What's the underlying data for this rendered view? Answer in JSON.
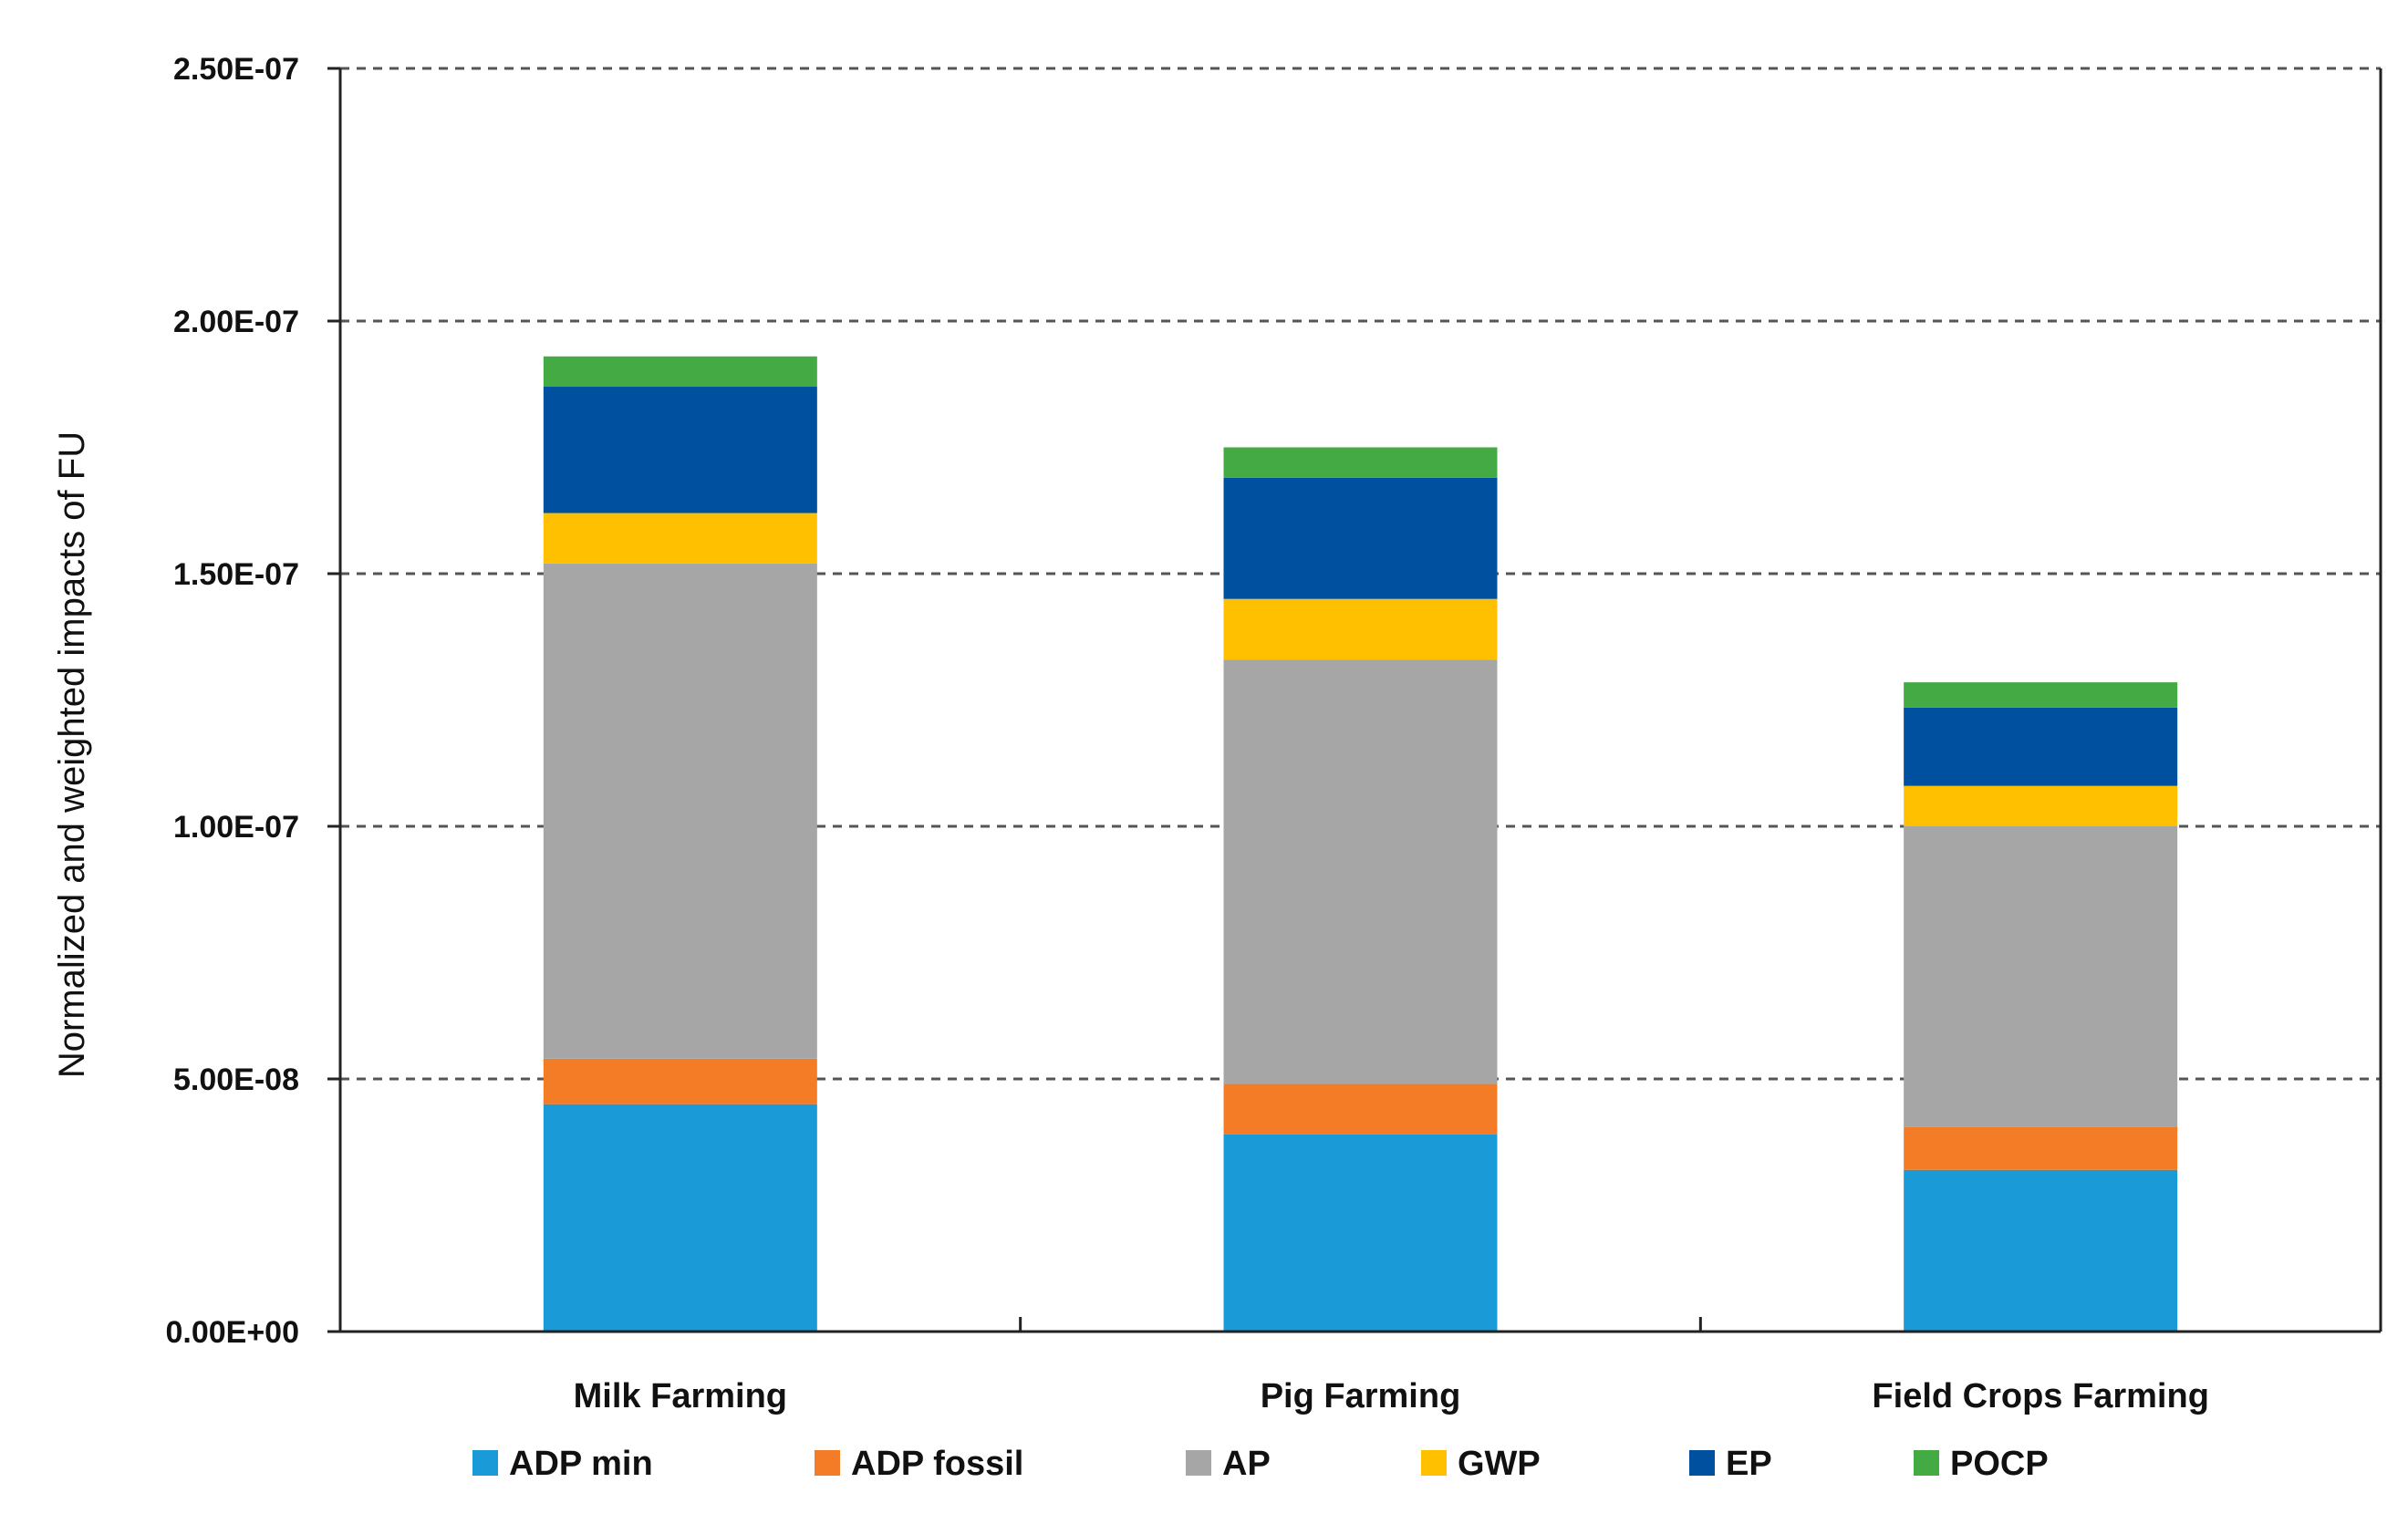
{
  "chart_data": {
    "type": "bar",
    "stacked": true,
    "title": "",
    "xlabel": "",
    "ylabel": "Normalized and weighted impacts of FU",
    "categories": [
      "Milk Farming",
      "Pig Farming",
      "Field Crops Farming"
    ],
    "ylim": [
      0,
      2.5e-07
    ],
    "yticks": [
      0,
      5e-08,
      1e-07,
      1.5e-07,
      2e-07,
      2.5e-07
    ],
    "ytick_labels": [
      "0.00E+00",
      "5.00E-08",
      "1.00E-07",
      "1.50E-07",
      "2.00E-07",
      "2.50E-07"
    ],
    "grid": "horizontal dashed",
    "legend_position": "bottom",
    "series": [
      {
        "name": "ADP min",
        "color": "#1a9bd7",
        "values": [
          4.5e-08,
          3.9e-08,
          3.2e-08
        ]
      },
      {
        "name": "ADP fossil",
        "color": "#f47c27",
        "values": [
          9e-09,
          1e-08,
          8.5e-09
        ]
      },
      {
        "name": "AP",
        "color": "#a6a6a6",
        "values": [
          9.8e-08,
          8.4e-08,
          5.95e-08
        ]
      },
      {
        "name": "GWP",
        "color": "#ffc000",
        "values": [
          1e-08,
          1.2e-08,
          8e-09
        ]
      },
      {
        "name": "EP",
        "color": "#0050a0",
        "values": [
          2.5e-08,
          2.4e-08,
          1.55e-08
        ]
      },
      {
        "name": "POCP",
        "color": "#44aa44",
        "values": [
          6e-09,
          6e-09,
          5e-09
        ]
      }
    ]
  }
}
